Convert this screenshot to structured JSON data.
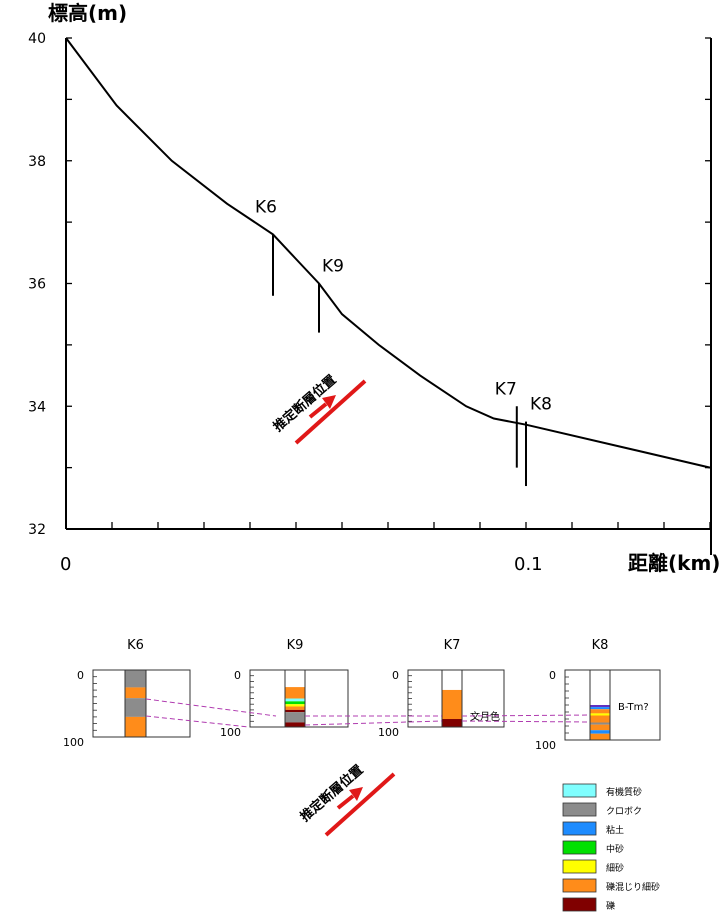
{
  "chart_data": [
    {
      "type": "line",
      "ylabel": "標高(m)",
      "xlabel": "距離(km)",
      "xlim": [
        0,
        0.14
      ],
      "ylim": [
        32,
        40
      ],
      "x_ticks": [
        "0",
        "0.1"
      ],
      "y_ticks": [
        "32",
        "34",
        "36",
        "38",
        "40"
      ],
      "grid": false,
      "series": [
        {
          "x": [
            0,
            0.011,
            0.023,
            0.035,
            0.045,
            0.05,
            0.055,
            0.06,
            0.068,
            0.077,
            0.087,
            0.093,
            0.1,
            0.12,
            0.14
          ],
          "y": [
            40,
            38.9,
            38.0,
            37.3,
            36.8,
            36.4,
            36.0,
            35.5,
            35.0,
            34.5,
            34.0,
            33.8,
            33.7,
            33.35,
            33.0
          ]
        }
      ],
      "boreholes": [
        {
          "name": "K6",
          "x": 0.045,
          "top": 36.8,
          "bottom": 35.8
        },
        {
          "name": "K9",
          "x": 0.055,
          "top": 36.0,
          "bottom": 35.2
        },
        {
          "name": "K7",
          "x": 0.098,
          "top": 34.0,
          "bottom": 33.0
        },
        {
          "name": "K8",
          "x": 0.1,
          "top": 33.75,
          "bottom": 32.7
        }
      ],
      "annotation": "推定断層位置"
    },
    {
      "type": "bar",
      "depth_ticks": [
        "0",
        "100"
      ],
      "logs": [
        {
          "name": "K6",
          "layers": [
            {
              "from": 0,
              "to": 26,
              "color": "#8c8c8c"
            },
            {
              "from": 26,
              "to": 42,
              "color": "#ff8c1a"
            },
            {
              "from": 42,
              "to": 70,
              "color": "#8c8c8c"
            },
            {
              "from": 70,
              "to": 100,
              "color": "#ff8c1a"
            }
          ]
        },
        {
          "name": "K9",
          "layers": [
            {
              "from": 30,
              "to": 50,
              "color": "#ff8c1a"
            },
            {
              "from": 50,
              "to": 55,
              "color": "#80ffff"
            },
            {
              "from": 55,
              "to": 60,
              "color": "#00e000"
            },
            {
              "from": 60,
              "to": 64,
              "color": "#ffff00"
            },
            {
              "from": 64,
              "to": 70,
              "color": "#ff8c1a"
            },
            {
              "from": 70,
              "to": 74,
              "color": "#800000"
            },
            {
              "from": 74,
              "to": 92,
              "color": "#8c8c8c"
            },
            {
              "from": 92,
              "to": 100,
              "color": "#800000"
            }
          ]
        },
        {
          "name": "K7",
          "layers": [
            {
              "from": 35,
              "to": 86,
              "color": "#ff8c1a"
            },
            {
              "from": 86,
              "to": 100,
              "color": "#800000"
            }
          ],
          "note": "文月色"
        },
        {
          "name": "K8",
          "layers": [
            {
              "from": 50,
              "to": 53,
              "color": "#6030c0"
            },
            {
              "from": 53,
              "to": 56,
              "color": "#1e8cff"
            },
            {
              "from": 56,
              "to": 62,
              "color": "#ff8c1a"
            },
            {
              "from": 62,
              "to": 65,
              "color": "#ffff00"
            },
            {
              "from": 65,
              "to": 75,
              "color": "#ff8c1a"
            },
            {
              "from": 75,
              "to": 78,
              "color": "#8c8c8c"
            },
            {
              "from": 78,
              "to": 86,
              "color": "#ff8c1a"
            },
            {
              "from": 86,
              "to": 91,
              "color": "#1e8cff"
            },
            {
              "from": 91,
              "to": 100,
              "color": "#ff8c1a"
            }
          ],
          "note": "B-Tm?"
        }
      ],
      "legend": [
        {
          "label": "有機質砂",
          "color": "#80ffff"
        },
        {
          "label": "クロボク",
          "color": "#8c8c8c"
        },
        {
          "label": "粘土",
          "color": "#1e8cff"
        },
        {
          "label": "中砂",
          "color": "#00e000"
        },
        {
          "label": "細砂",
          "color": "#ffff00"
        },
        {
          "label": "礫混じり細砂",
          "color": "#ff8c1a"
        },
        {
          "label": "礫",
          "color": "#800000"
        }
      ],
      "annotation": "推定断層位置"
    }
  ]
}
